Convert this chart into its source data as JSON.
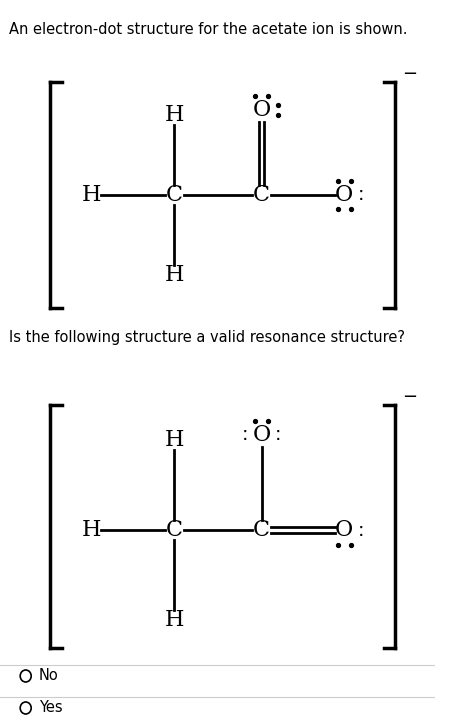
{
  "title_text": "An electron-dot structure for the acetate ion is shown.",
  "question_text": "Is the following structure a valid resonance structure?",
  "bg_color": "#ffffff",
  "text_color": "#000000",
  "font_size_title": 10.5,
  "font_size_label": 16,
  "fig_width": 4.74,
  "fig_height": 7.18,
  "no_label": "No",
  "yes_label": "Yes"
}
